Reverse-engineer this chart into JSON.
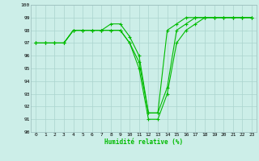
{
  "xlabel": "Humidité relative (%)",
  "ylabel": "",
  "background_color": "#cceee8",
  "grid_color": "#aad4ce",
  "line_color": "#00bb00",
  "xlim": [
    -0.5,
    23.5
  ],
  "ylim": [
    90,
    100
  ],
  "yticks": [
    90,
    91,
    92,
    93,
    94,
    95,
    96,
    97,
    98,
    99,
    100
  ],
  "xticks": [
    0,
    1,
    2,
    3,
    4,
    5,
    6,
    7,
    8,
    9,
    10,
    11,
    12,
    13,
    14,
    15,
    16,
    17,
    18,
    19,
    20,
    21,
    22,
    23
  ],
  "series": [
    [
      97,
      97,
      97,
      97,
      98,
      98,
      98,
      98,
      98,
      98,
      97,
      95,
      91,
      91,
      93,
      97,
      98,
      98.5,
      99,
      99,
      99,
      99,
      99,
      99
    ],
    [
      97,
      97,
      97,
      97,
      98,
      98,
      98,
      98,
      98,
      98,
      97,
      95.5,
      91.5,
      91.5,
      93.5,
      98,
      98.5,
      99,
      99,
      99,
      99,
      99,
      99,
      99
    ],
    [
      97,
      97,
      97,
      97,
      98,
      98,
      98,
      98,
      98.5,
      98.5,
      97.5,
      96,
      91.5,
      91.5,
      98,
      98.5,
      99,
      99,
      99,
      99,
      99,
      99,
      99,
      99
    ]
  ]
}
